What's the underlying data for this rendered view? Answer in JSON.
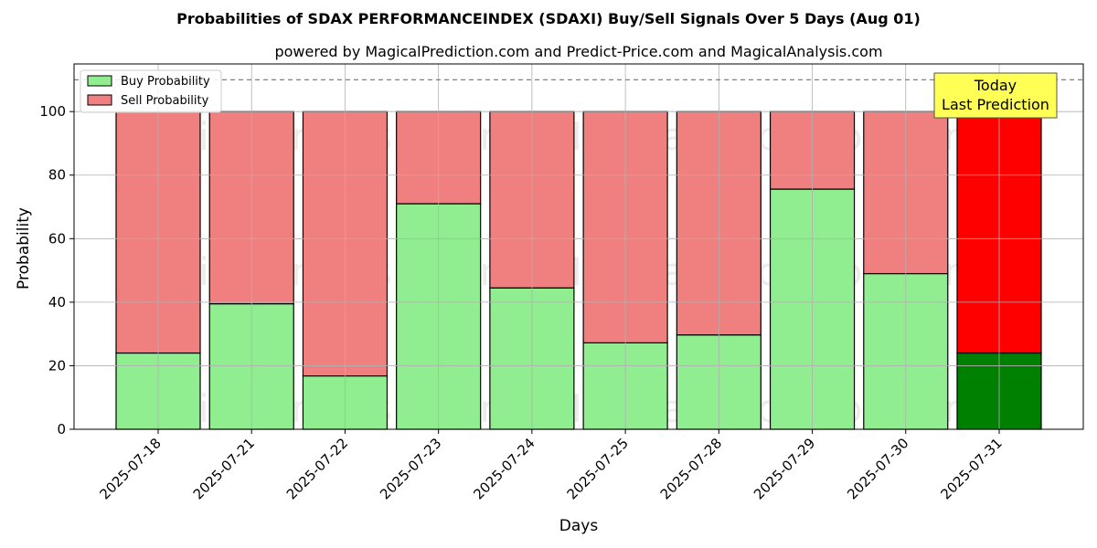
{
  "chart_data": {
    "type": "bar",
    "stacked": true,
    "title": "Probabilities of SDAX PERFORMANCEINDEX (SDAXI) Buy/Sell Signals Over 5 Days (Aug 01)",
    "subtitle": "powered by MagicalPrediction.com and Predict-Price.com and MagicalAnalysis.com",
    "xlabel": "Days",
    "ylabel": "Probability",
    "ylim": [
      0,
      115
    ],
    "yticks": [
      0,
      20,
      40,
      60,
      80,
      100
    ],
    "grid": true,
    "legend_position": "top-left",
    "categories": [
      "2025-07-18",
      "2025-07-21",
      "2025-07-22",
      "2025-07-23",
      "2025-07-24",
      "2025-07-25",
      "2025-07-28",
      "2025-07-29",
      "2025-07-30",
      "2025-07-31"
    ],
    "series": [
      {
        "name": "Buy Probability",
        "color": "#90ee90",
        "values": [
          24,
          39.5,
          16.8,
          71,
          44.5,
          27.2,
          29.7,
          75.6,
          49,
          24
        ]
      },
      {
        "name": "Sell Probability",
        "color": "#f08080",
        "values": [
          76,
          60.5,
          83.2,
          29,
          55.5,
          72.8,
          70.3,
          24.4,
          51,
          76
        ]
      }
    ],
    "highlight": {
      "index": 9,
      "buy_color": "#008000",
      "sell_color": "#ff0000"
    },
    "reference_line": {
      "y": 110,
      "style": "dashed",
      "color": "#808080"
    },
    "annotation": {
      "lines": [
        "Today",
        "Last Prediction"
      ],
      "background": "#ffff55",
      "category_index": 9
    },
    "watermarks": [
      "MagicalAnalysis.com",
      "MagicalPrediction.com"
    ]
  }
}
